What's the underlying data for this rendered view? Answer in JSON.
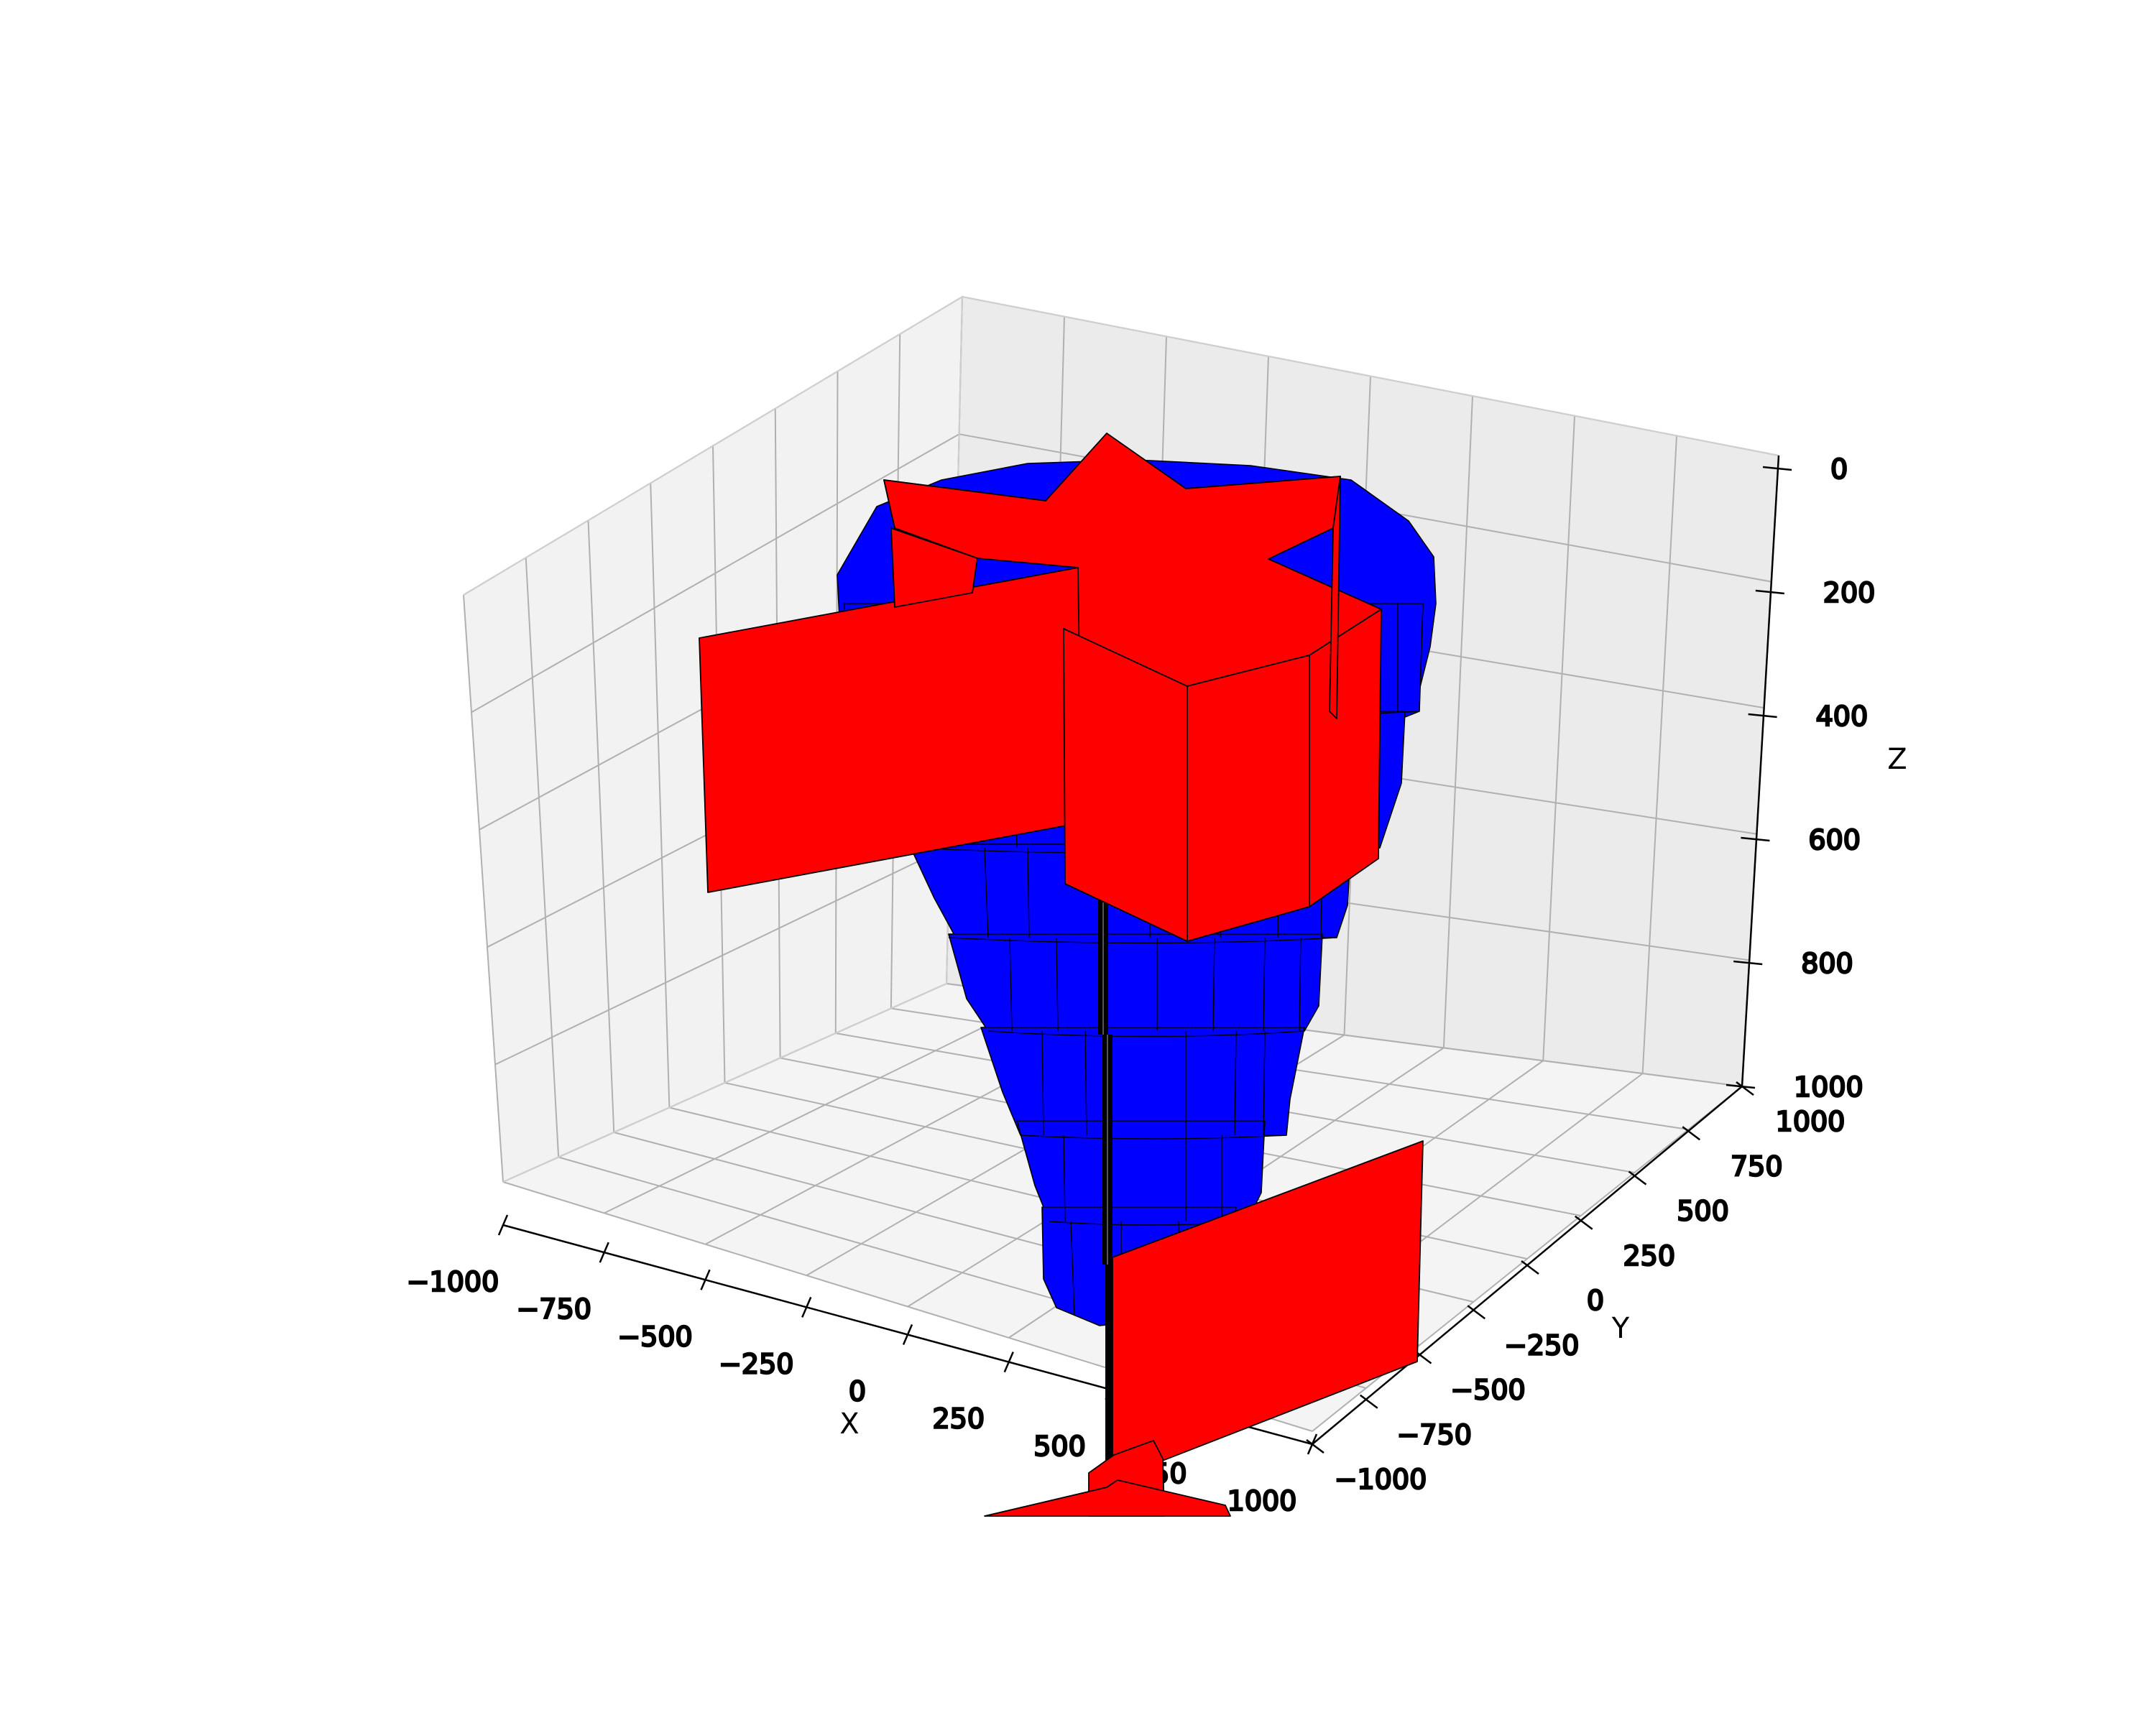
{
  "chart_data": {
    "type": "3d-surface",
    "title": "",
    "axes": {
      "x": {
        "label": "X",
        "range": [
          -1000,
          1000
        ],
        "ticks": [
          "−1000",
          "−750",
          "−500",
          "−250",
          "0",
          "250",
          "500",
          "750",
          "1000"
        ]
      },
      "y": {
        "label": "Y",
        "range": [
          -1000,
          1000
        ],
        "ticks": [
          "1000",
          "750",
          "500",
          "250",
          "0",
          "−250",
          "−500",
          "−750",
          "−1000"
        ]
      },
      "z": {
        "label": "Z",
        "range": [
          0,
          1000
        ],
        "inverted": true,
        "ticks": [
          "0",
          "200",
          "400",
          "600",
          "800",
          "1000"
        ]
      }
    },
    "grid": true,
    "legend": "none",
    "objects": [
      {
        "name": "tank-cone",
        "color": "#0000ff",
        "edge_color": "#000000"
      },
      {
        "name": "upper-impeller-blades",
        "color": "#ff0000",
        "edge_color": "#000000",
        "blade_count": 6
      },
      {
        "name": "shaft",
        "color": "#000000"
      },
      {
        "name": "lower-impeller-blades",
        "color": "#ff0000",
        "edge_color": "#000000"
      }
    ]
  }
}
